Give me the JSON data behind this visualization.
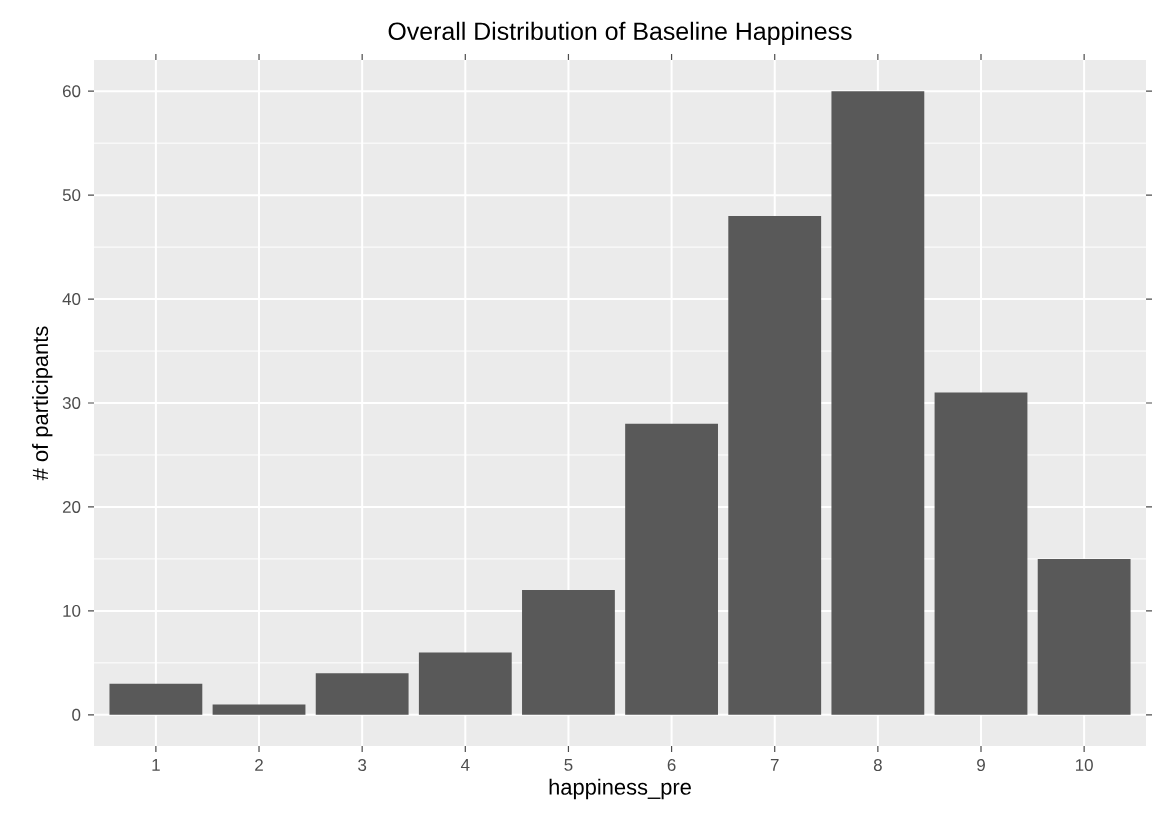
{
  "chart_data": {
    "type": "bar",
    "title": "Overall Distribution of Baseline Happiness",
    "xlabel": "happiness_pre",
    "ylabel": "# of participants",
    "categories": [
      "1",
      "2",
      "3",
      "4",
      "5",
      "6",
      "7",
      "8",
      "9",
      "10"
    ],
    "values": [
      3,
      1,
      4,
      6,
      12,
      28,
      48,
      60,
      31,
      15
    ],
    "color": "#595959",
    "ylim": [
      -3,
      63
    ],
    "yticks": [
      0,
      10,
      20,
      30,
      40,
      50,
      60
    ],
    "grid": true
  }
}
